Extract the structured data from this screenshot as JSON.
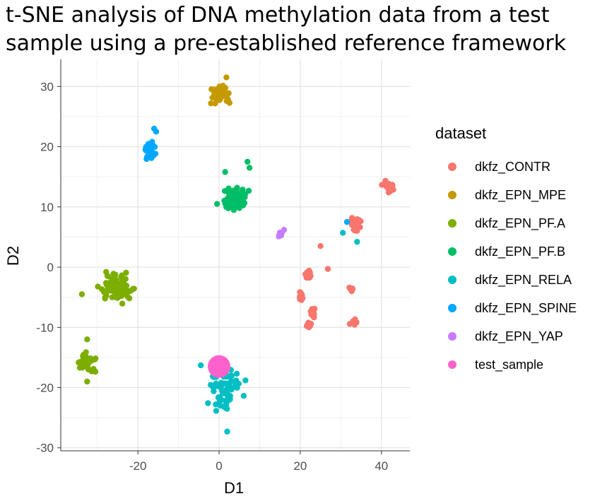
{
  "chart_data": {
    "type": "scatter",
    "title": "t-SNE analysis of DNA methylation data from a test sample using a pre-established reference framework",
    "xlabel": "D1",
    "ylabel": "D2",
    "xlim": [
      -39,
      47
    ],
    "ylim": [
      -30.5,
      34.5
    ],
    "xticks": [
      -20,
      0,
      20,
      40
    ],
    "yticks": [
      30,
      20,
      10,
      0,
      -10,
      -20,
      -30
    ],
    "grid": true,
    "legend_title": "dataset",
    "legend_position": "right",
    "series": [
      {
        "name": "dkfz_CONTR",
        "color": "#F8766D",
        "clusters": [
          {
            "center": [
              42,
              13.2
            ],
            "spread": [
              1.3,
              0.9
            ],
            "n": 28
          },
          {
            "center": [
              33.5,
              7.2
            ],
            "spread": [
              1.1,
              1.0
            ],
            "n": 24
          },
          {
            "center": [
              22,
              -1.3
            ],
            "spread": [
              0.7,
              0.6
            ],
            "n": 14
          },
          {
            "center": [
              20,
              -5
            ],
            "spread": [
              0.5,
              0.8
            ],
            "n": 10
          },
          {
            "center": [
              22.8,
              -7.5
            ],
            "spread": [
              0.8,
              0.6
            ],
            "n": 12
          },
          {
            "center": [
              22.3,
              -9.5
            ],
            "spread": [
              0.6,
              0.5
            ],
            "n": 10
          },
          {
            "center": [
              32.7,
              -3.6
            ],
            "spread": [
              0.5,
              0.4
            ],
            "n": 7
          },
          {
            "center": [
              33.2,
              -9.2
            ],
            "spread": [
              0.7,
              0.4
            ],
            "n": 9
          }
        ],
        "points": [
          [
            25,
            3.5
          ],
          [
            26.8,
            -0.3
          ]
        ]
      },
      {
        "name": "dkfz_EPN_MPE",
        "color": "#C49A00",
        "clusters": [
          {
            "center": [
              0.5,
              28.7
            ],
            "spread": [
              2.4,
              1.2
            ],
            "n": 42
          }
        ],
        "points": [
          [
            1.8,
            31.5
          ],
          [
            -2,
            27.2
          ]
        ]
      },
      {
        "name": "dkfz_EPN_PF.A",
        "color": "#7CAE00",
        "clusters": [
          {
            "center": [
              -25,
              -3.5
            ],
            "spread": [
              3.5,
              1.9
            ],
            "n": 78
          },
          {
            "center": [
              -32.7,
              -15.8
            ],
            "spread": [
              1.9,
              1.4
            ],
            "n": 42
          }
        ],
        "points": [
          [
            -33.8,
            -4.5
          ],
          [
            -32.5,
            -12
          ],
          [
            -32.5,
            -19
          ]
        ]
      },
      {
        "name": "dkfz_EPN_PF.B",
        "color": "#00BE67",
        "clusters": [
          {
            "center": [
              3.5,
              11.2
            ],
            "spread": [
              2.8,
              1.7
            ],
            "n": 60
          }
        ],
        "points": [
          [
            7,
            17.5
          ],
          [
            7.5,
            16.5
          ],
          [
            1.5,
            15.8
          ],
          [
            -0.5,
            10.5
          ]
        ]
      },
      {
        "name": "dkfz_EPN_RELA",
        "color": "#00BFC4",
        "clusters": [
          {
            "center": [
              1.5,
              -20.5
            ],
            "spread": [
              3.3,
              3.2
            ],
            "n": 68
          }
        ],
        "points": [
          [
            34,
            4.2
          ],
          [
            30.5,
            5.7
          ],
          [
            -4.5,
            -16.3
          ],
          [
            6.5,
            -18.8
          ],
          [
            2,
            -27.3
          ]
        ]
      },
      {
        "name": "dkfz_EPN_SPINE",
        "color": "#00A9FF",
        "clusters": [
          {
            "center": [
              -17.2,
              19.5
            ],
            "spread": [
              1.2,
              1.2
            ],
            "n": 34
          }
        ],
        "points": [
          [
            -16,
            23
          ],
          [
            -15.5,
            22.5
          ],
          [
            31.5,
            7.5
          ]
        ]
      },
      {
        "name": "dkfz_EPN_YAP",
        "color": "#C77CFF",
        "clusters": [
          {
            "center": [
              15,
              5.5
            ],
            "spread": [
              0.45,
              0.45
            ],
            "n": 12
          }
        ],
        "points": [
          [
            16,
            6.2
          ]
        ]
      },
      {
        "name": "test_sample",
        "color": "#FF61CC",
        "clusters": [],
        "points": [
          [
            0,
            -16.5
          ]
        ],
        "large": true
      }
    ]
  }
}
